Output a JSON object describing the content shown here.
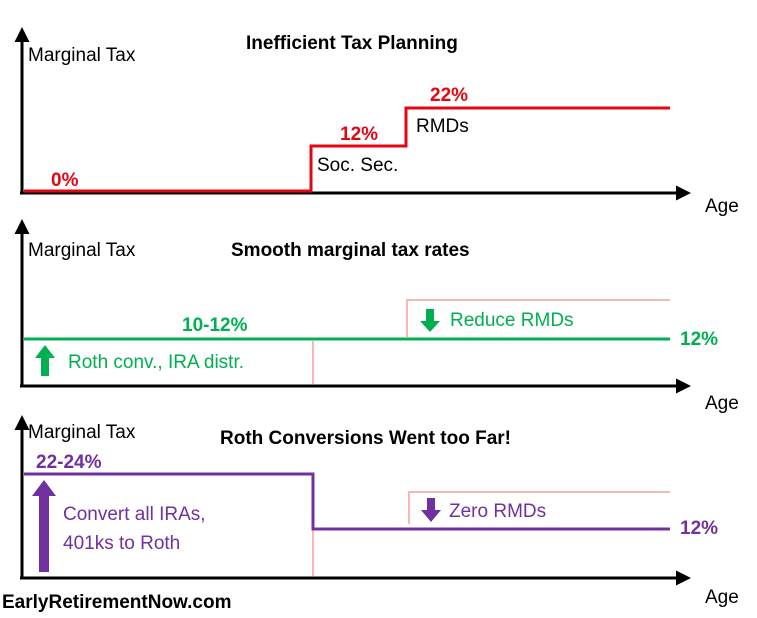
{
  "colors": {
    "red": "#e30613",
    "green": "#00b050",
    "purple": "#7030a0",
    "pink": "#f4b8b8",
    "axis": "#000000"
  },
  "panels": [
    {
      "title": "Inefficient Tax Planning",
      "y_axis_label": "Marginal Tax",
      "x_axis_label": "Age",
      "labels": {
        "rate_early": "0%",
        "rate_mid": "12%",
        "rate_late": "22%",
        "step_mid": "Soc. Sec.",
        "step_late": "RMDs"
      }
    },
    {
      "title": "Smooth marginal tax rates",
      "y_axis_label": "Marginal Tax",
      "x_axis_label": "Age",
      "labels": {
        "rate_range": "10-12%",
        "rate_end": "12%",
        "up_action": "Roth conv., IRA distr.",
        "down_action": "Reduce RMDs"
      }
    },
    {
      "title": "Roth Conversions Went too Far!",
      "y_axis_label": "Marginal Tax",
      "x_axis_label": "Age",
      "labels": {
        "rate_range": "22-24%",
        "rate_end": "12%",
        "up_action_line1": "Convert all IRAs,",
        "up_action_line2": "401ks to Roth",
        "down_action": "Zero RMDs"
      }
    }
  ],
  "footer": "EarlyRetirementNow.com"
}
